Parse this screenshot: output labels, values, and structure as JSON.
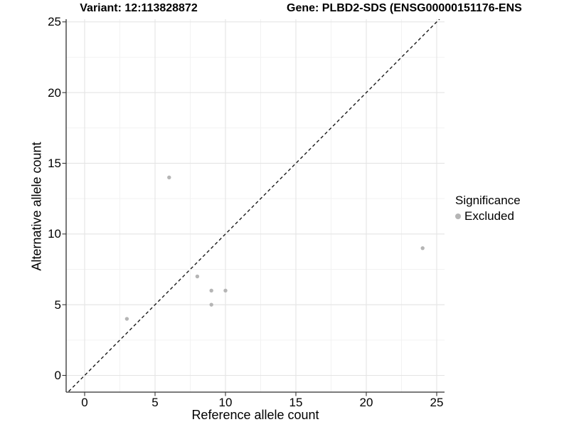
{
  "header": {
    "title_left": "Variant: 12:113828872",
    "title_right": "Gene: PLBD2-SDS (ENSG00000151176-ENS"
  },
  "chart_data": {
    "type": "scatter",
    "xlabel": "Reference allele count",
    "ylabel": "Alternative allele count",
    "x_ticks": [
      0,
      5,
      10,
      15,
      20,
      25
    ],
    "y_ticks": [
      0,
      5,
      10,
      15,
      20,
      25
    ],
    "x_minor_ticks": [
      2.5,
      7.5,
      12.5,
      17.5,
      22.5
    ],
    "y_minor_ticks": [
      2.5,
      7.5,
      12.5,
      17.5,
      22.5
    ],
    "xlim": [
      -1.31,
      25.56
    ],
    "ylim": [
      -1.18,
      25.19
    ],
    "grid": "major and minor, light gray",
    "identity_line": {
      "equation": "y = x",
      "style": "dashed",
      "color": "#1a1a1a"
    },
    "series": [
      {
        "name": "Excluded",
        "color": "#b5b5b5",
        "points": [
          {
            "x": 3,
            "y": 4
          },
          {
            "x": 6,
            "y": 14
          },
          {
            "x": 8,
            "y": 7
          },
          {
            "x": 9,
            "y": 5
          },
          {
            "x": 9,
            "y": 6
          },
          {
            "x": 10,
            "y": 6
          },
          {
            "x": 24,
            "y": 9
          }
        ]
      }
    ],
    "legend": {
      "title": "Significance",
      "position": "right",
      "entries": [
        {
          "label": "Excluded",
          "color": "#b5b5b5"
        }
      ]
    }
  },
  "colors": {
    "background": "#ffffff",
    "grid_major": "#e4e4e4",
    "grid_minor": "#f2f2f2",
    "axis_line": "#2f2f2f",
    "tick_mark": "#333333",
    "text": "#000000",
    "point": "#b5b5b5"
  }
}
